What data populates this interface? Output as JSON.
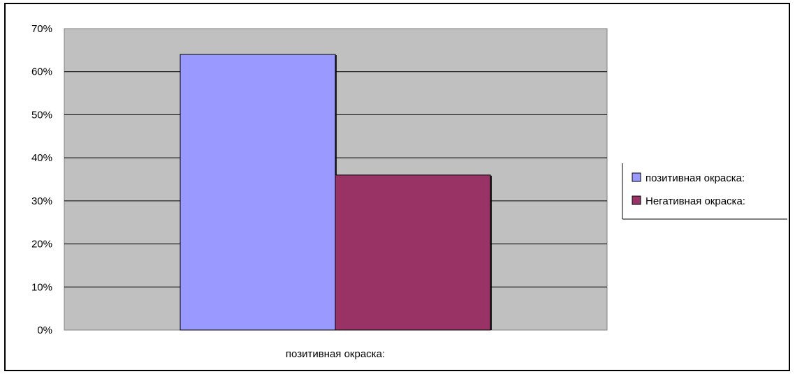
{
  "chart_data": {
    "type": "bar",
    "categories": [
      "позитивная окраска:"
    ],
    "series": [
      {
        "name": "позитивная окраска:",
        "values": [
          64
        ],
        "color": "#9999ff"
      },
      {
        "name": "Негативная окраска:",
        "values": [
          36
        ],
        "color": "#993366"
      }
    ],
    "ylim": [
      0,
      70
    ],
    "y_ticks": [
      0,
      10,
      20,
      30,
      40,
      50,
      60,
      70
    ],
    "y_tick_labels": [
      "0%",
      "10%",
      "20%",
      "30%",
      "40%",
      "50%",
      "60%",
      "70%"
    ],
    "grid": true,
    "plot_background": "#c0c0c0",
    "legend_position": "right"
  }
}
